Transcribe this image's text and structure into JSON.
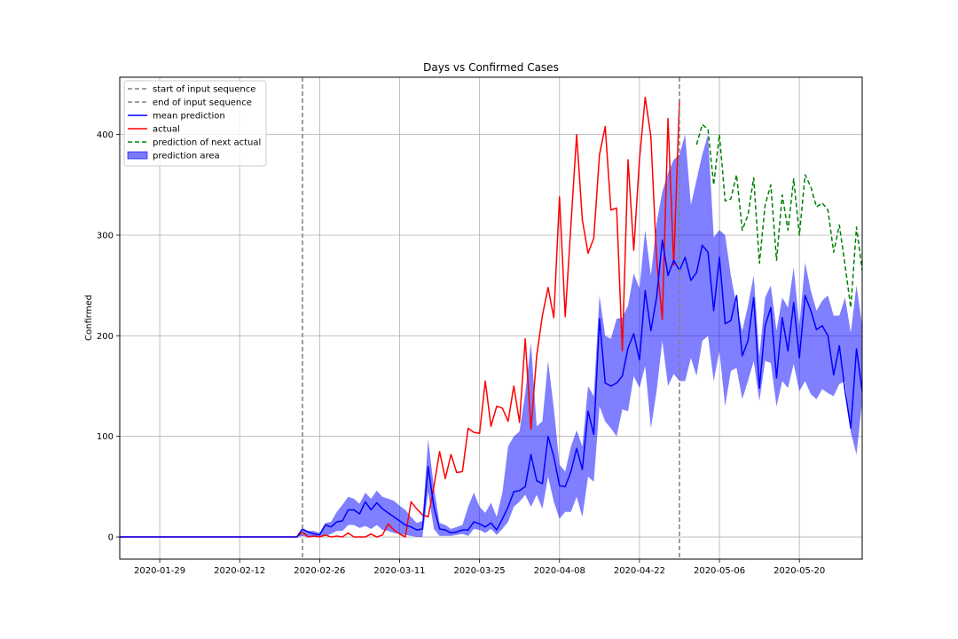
{
  "chart_data": {
    "type": "line",
    "title": "Days vs Confirmed Cases",
    "xlabel": "",
    "ylabel": "Confirmed",
    "x_start_date": "2020-01-22",
    "xlim_days": [
      0,
      130
    ],
    "ylim": [
      -22,
      457
    ],
    "y_ticks": [
      0,
      100,
      200,
      300,
      400
    ],
    "x_ticks": [
      {
        "day": 7,
        "label": "2020-01-29"
      },
      {
        "day": 21,
        "label": "2020-02-12"
      },
      {
        "day": 35,
        "label": "2020-02-26"
      },
      {
        "day": 49,
        "label": "2020-03-11"
      },
      {
        "day": 63,
        "label": "2020-03-25"
      },
      {
        "day": 77,
        "label": "2020-04-08"
      },
      {
        "day": 91,
        "label": "2020-04-22"
      },
      {
        "day": 105,
        "label": "2020-05-06"
      },
      {
        "day": 119,
        "label": "2020-05-20"
      }
    ],
    "grid": true,
    "legend_position": "upper-left",
    "vlines": [
      {
        "name": "start of input sequence",
        "day": 32,
        "color": "#808080",
        "style": "dashed"
      },
      {
        "name": "end of input sequence",
        "day": 98,
        "color": "#808080",
        "style": "dashed"
      }
    ],
    "series": [
      {
        "name": "mean prediction",
        "color": "#0000ff",
        "style": "solid",
        "start_day": 0,
        "values": [
          0,
          0,
          0,
          0,
          0,
          0,
          0,
          0,
          0,
          0,
          0,
          0,
          0,
          0,
          0,
          0,
          0,
          0,
          0,
          0,
          0,
          0,
          0,
          0,
          0,
          0,
          0,
          0,
          0,
          0,
          0,
          0,
          8,
          5,
          3,
          2,
          12,
          10,
          15,
          16,
          27,
          27,
          23,
          35,
          27,
          34,
          28,
          24,
          20,
          16,
          12,
          10,
          7,
          8,
          70,
          30,
          8,
          7,
          4,
          5,
          7,
          7,
          15,
          13,
          10,
          14,
          7,
          18,
          30,
          45,
          46,
          50,
          82,
          56,
          53,
          100,
          80,
          51,
          50,
          65,
          88,
          67,
          125,
          102,
          217,
          153,
          150,
          153,
          160,
          188,
          202,
          176,
          245,
          205,
          238,
          295,
          260,
          275,
          265,
          278,
          255,
          263,
          290,
          283,
          225,
          278,
          212,
          215,
          240,
          180,
          195,
          238,
          148,
          210,
          228,
          158,
          218,
          185,
          233,
          178,
          240,
          225,
          206,
          210,
          200,
          161,
          190,
          145,
          108,
          187,
          145
        ],
        "band_lower": [
          0,
          0,
          0,
          0,
          0,
          0,
          0,
          0,
          0,
          0,
          0,
          0,
          0,
          0,
          0,
          0,
          0,
          0,
          0,
          0,
          0,
          0,
          0,
          0,
          0,
          0,
          0,
          0,
          0,
          0,
          0,
          0,
          1,
          0,
          0,
          0,
          1,
          3,
          6,
          6,
          12,
          12,
          9,
          11,
          8,
          12,
          7,
          6,
          4,
          3,
          2,
          1,
          0,
          0,
          45,
          8,
          1,
          1,
          1,
          2,
          3,
          1,
          8,
          7,
          4,
          8,
          2,
          8,
          15,
          30,
          35,
          42,
          30,
          42,
          28,
          60,
          35,
          18,
          25,
          25,
          40,
          20,
          60,
          55,
          130,
          115,
          108,
          100,
          127,
          125,
          160,
          148,
          170,
          108,
          145,
          195,
          150,
          162,
          155,
          155,
          178,
          160,
          195,
          200,
          155,
          185,
          130,
          165,
          168,
          137,
          155,
          175,
          135,
          175,
          173,
          130,
          155,
          148,
          172,
          145,
          155,
          142,
          137,
          147,
          143,
          140,
          152,
          155,
          104,
          82,
          135
        ],
        "band_upper": [
          0,
          0,
          0,
          0,
          0,
          0,
          0,
          0,
          0,
          0,
          0,
          0,
          0,
          0,
          0,
          0,
          0,
          0,
          0,
          0,
          0,
          0,
          0,
          0,
          0,
          0,
          0,
          0,
          0,
          0,
          0,
          0,
          8,
          6,
          6,
          4,
          14,
          15,
          25,
          32,
          40,
          38,
          33,
          44,
          38,
          46,
          40,
          38,
          36,
          31,
          27,
          20,
          14,
          16,
          97,
          50,
          14,
          12,
          8,
          10,
          12,
          30,
          44,
          30,
          24,
          34,
          20,
          44,
          90,
          100,
          105,
          143,
          193,
          110,
          115,
          175,
          128,
          72,
          65,
          90,
          106,
          90,
          150,
          140,
          240,
          200,
          197,
          217,
          218,
          230,
          262,
          247,
          305,
          260,
          312,
          343,
          362,
          375,
          380,
          400,
          330,
          355,
          380,
          400,
          298,
          305,
          300,
          260,
          230,
          205,
          230,
          260,
          180,
          238,
          250,
          205,
          238,
          228,
          268,
          210,
          273,
          245,
          225,
          235,
          240,
          220,
          220,
          238,
          203,
          250,
          210
        ]
      },
      {
        "name": "actual",
        "color": "#ff0000",
        "style": "solid",
        "start_day": 0,
        "values": [
          0,
          0,
          0,
          0,
          0,
          0,
          0,
          0,
          0,
          0,
          0,
          0,
          0,
          0,
          0,
          0,
          0,
          0,
          0,
          0,
          0,
          0,
          0,
          0,
          0,
          0,
          0,
          0,
          0,
          0,
          0,
          0,
          5,
          0,
          1,
          0,
          2,
          0,
          1,
          0,
          4,
          0,
          0,
          0,
          3,
          0,
          2,
          13,
          7,
          3,
          0,
          35,
          28,
          22,
          20,
          50,
          85,
          58,
          82,
          64,
          65,
          108,
          104,
          103,
          155,
          110,
          130,
          128,
          115,
          150,
          114,
          197,
          107,
          180,
          220,
          248,
          218,
          338,
          219,
          310,
          400,
          315,
          282,
          297,
          380,
          408,
          325,
          327,
          185,
          375,
          285,
          375,
          437,
          398,
          276,
          216,
          416,
          270,
          434
        ],
        "end_day": 98
      },
      {
        "name": "prediction of next actual",
        "color": "#008000",
        "style": "dashed",
        "start_day": 101,
        "values": [
          390,
          410,
          405,
          350,
          400,
          334,
          336,
          360,
          305,
          320,
          357,
          272,
          330,
          350,
          275,
          340,
          305,
          356,
          300,
          360,
          348,
          328,
          332,
          325,
          283,
          310,
          270,
          228,
          308,
          265
        ]
      }
    ],
    "legend": [
      {
        "label": "start of input sequence",
        "type": "dash",
        "color": "#808080"
      },
      {
        "label": "end of input sequence",
        "type": "dash",
        "color": "#808080"
      },
      {
        "label": "mean prediction",
        "type": "line",
        "color": "#0000ff"
      },
      {
        "label": "actual",
        "type": "line",
        "color": "#ff0000"
      },
      {
        "label": "prediction of next actual",
        "type": "dash",
        "color": "#008000"
      },
      {
        "label": "prediction area",
        "type": "patch",
        "color": "#7b7bf7"
      }
    ]
  }
}
